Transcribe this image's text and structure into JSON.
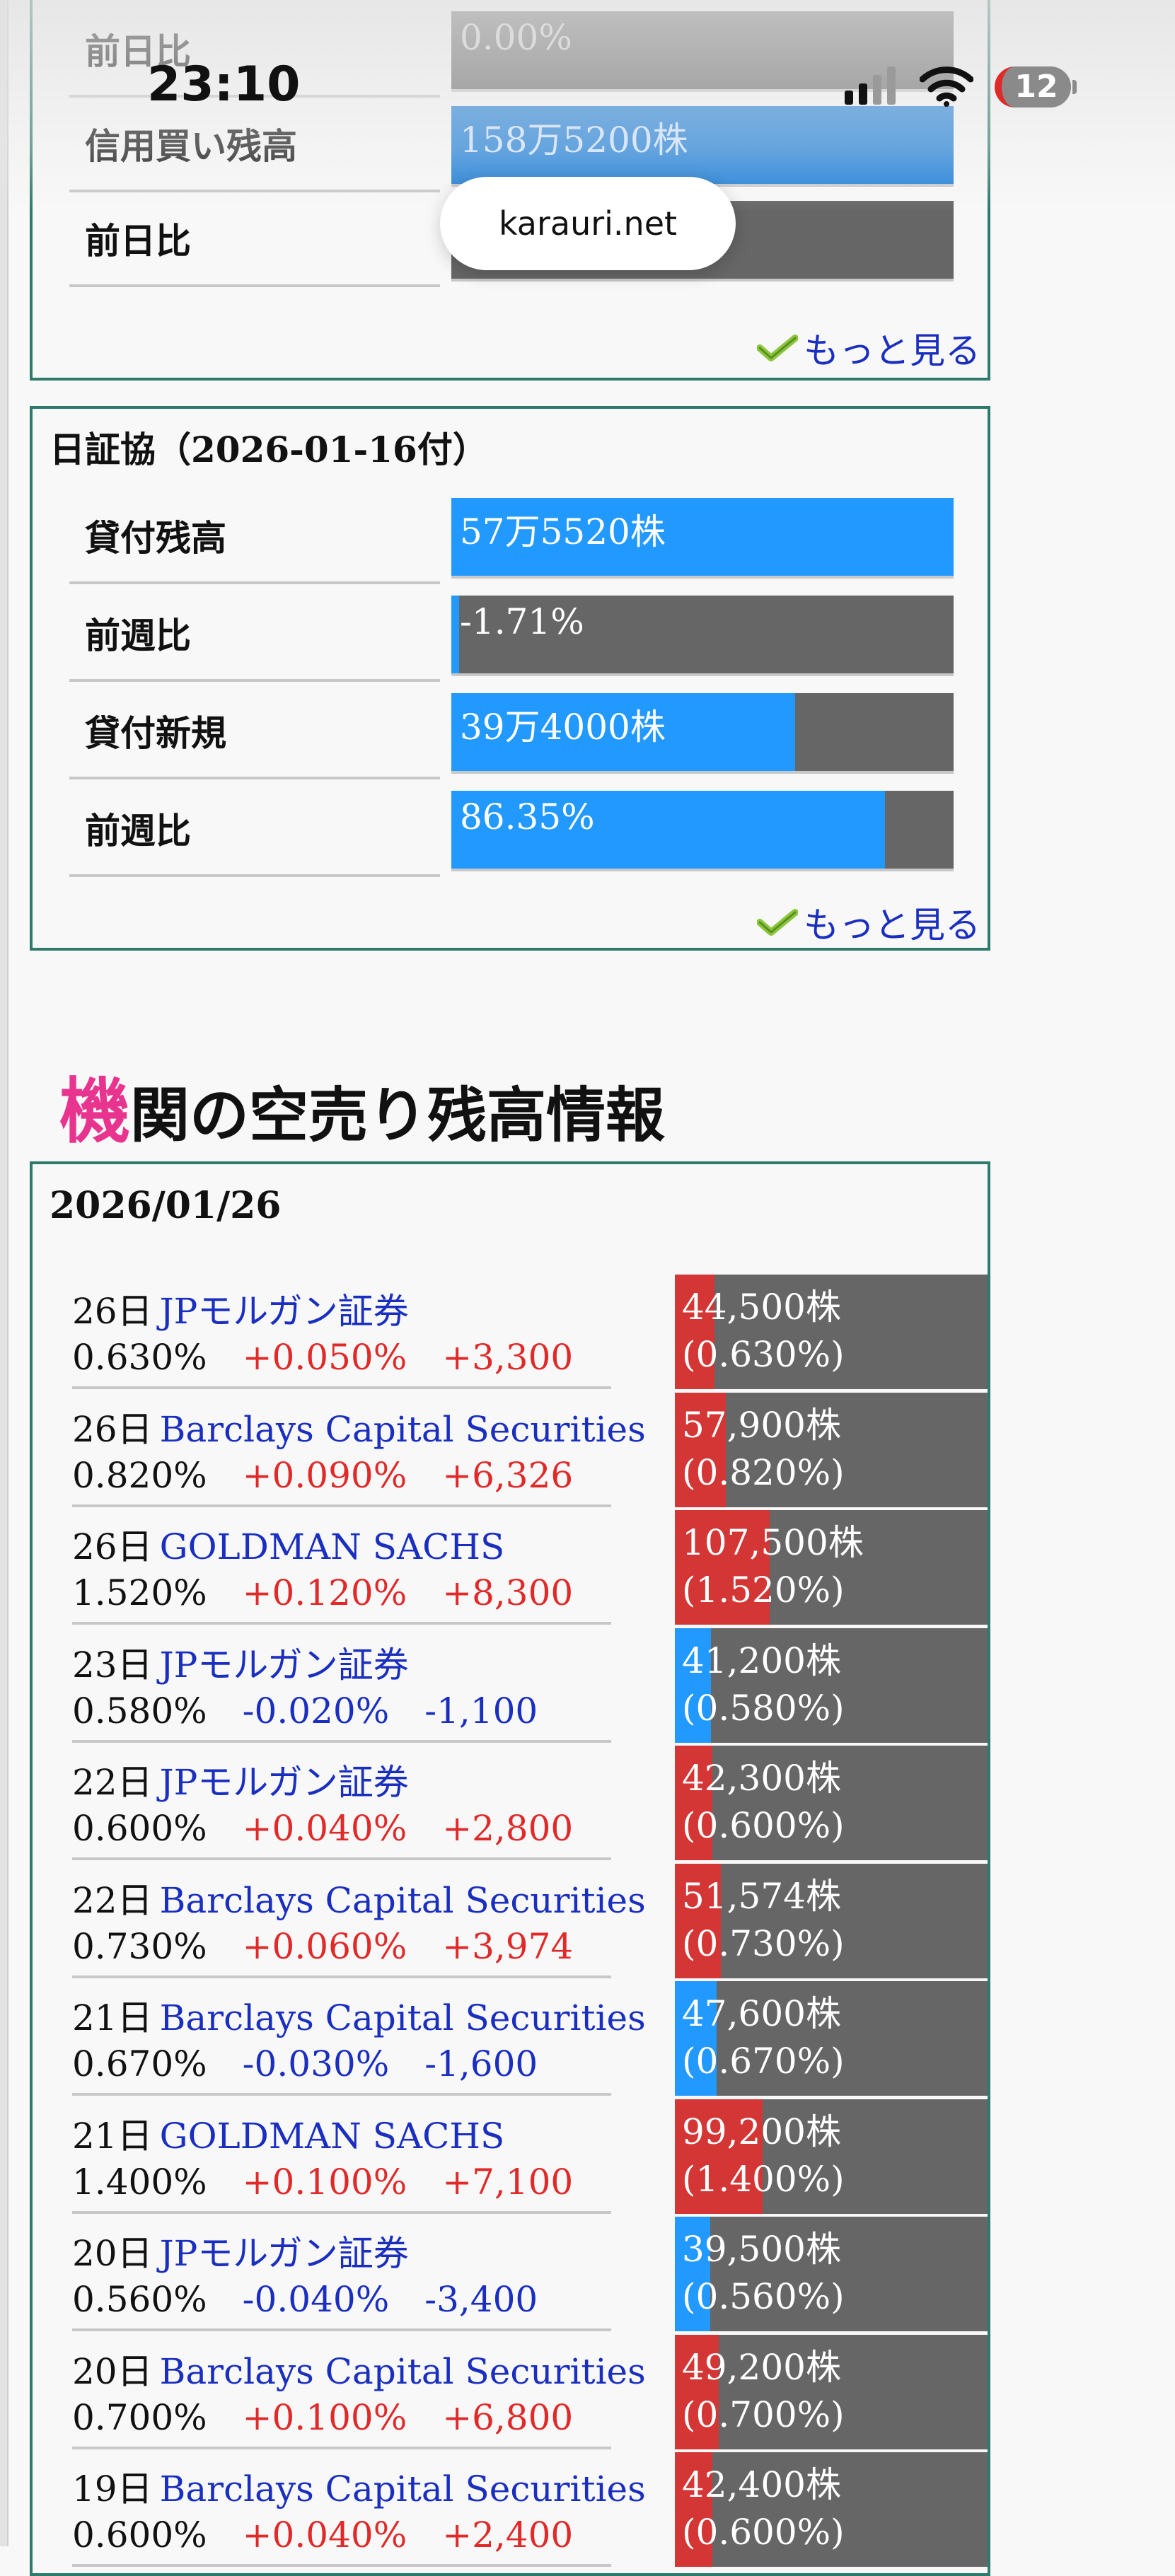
{
  "status_bar": {
    "time": "23:10",
    "battery": "12"
  },
  "url_bar": {
    "domain": "karauri.net"
  },
  "margin_box": {
    "rows": [
      {
        "label": "前日比",
        "value": "0.00%",
        "fill_pct": 0
      },
      {
        "label": "信用買い残高",
        "value": "158万5200株",
        "fill_pct": 100,
        "fill_color": "#1f7fd8"
      },
      {
        "label": "前日比",
        "value": "",
        "fill_pct": 0
      }
    ],
    "more_link": "もっと見る"
  },
  "jsf_box": {
    "title": "日証協（2026-01-16付）",
    "rows": [
      {
        "label": "貸付残高",
        "value": "57万5520株",
        "fill_pct": 100
      },
      {
        "label": "前週比",
        "value": "-1.71%",
        "fill_pct": 1.5
      },
      {
        "label": "貸付新規",
        "value": "39万4000株",
        "fill_pct": 68.5
      },
      {
        "label": "前週比",
        "value": "86.35%",
        "fill_pct": 86.3
      }
    ],
    "more_link": "もっと見る"
  },
  "institutions": {
    "heading_first_char": "機",
    "heading_rest": "関の空売り残高情報",
    "date": "2026/01/26",
    "rows": [
      {
        "day": "26日",
        "firm": "JPモルガン証券",
        "ratio": "0.630%",
        "change_pct": "+0.050%",
        "change_qty": "+3,300",
        "qty": "44,500株",
        "ratio_paren": "(0.630%)",
        "direction": "up",
        "fill_pct": 12.6
      },
      {
        "day": "26日",
        "firm": "Barclays Capital Securities",
        "ratio": "0.820%",
        "change_pct": "+0.090%",
        "change_qty": "+6,326",
        "qty": "57,900株",
        "ratio_paren": "(0.820%)",
        "direction": "up",
        "fill_pct": 16.4
      },
      {
        "day": "26日",
        "firm": "GOLDMAN SACHS",
        "ratio": "1.520%",
        "change_pct": "+0.120%",
        "change_qty": "+8,300",
        "qty": "107,500株",
        "ratio_paren": "(1.520%)",
        "direction": "up",
        "fill_pct": 30.4
      },
      {
        "day": "23日",
        "firm": "JPモルガン証券",
        "ratio": "0.580%",
        "change_pct": "-0.020%",
        "change_qty": "-1,100",
        "qty": "41,200株",
        "ratio_paren": "(0.580%)",
        "direction": "down",
        "fill_pct": 11.6
      },
      {
        "day": "22日",
        "firm": "JPモルガン証券",
        "ratio": "0.600%",
        "change_pct": "+0.040%",
        "change_qty": "+2,800",
        "qty": "42,300株",
        "ratio_paren": "(0.600%)",
        "direction": "up",
        "fill_pct": 12.0
      },
      {
        "day": "22日",
        "firm": "Barclays Capital Securities",
        "ratio": "0.730%",
        "change_pct": "+0.060%",
        "change_qty": "+3,974",
        "qty": "51,574株",
        "ratio_paren": "(0.730%)",
        "direction": "up",
        "fill_pct": 14.6
      },
      {
        "day": "21日",
        "firm": "Barclays Capital Securities",
        "ratio": "0.670%",
        "change_pct": "-0.030%",
        "change_qty": "-1,600",
        "qty": "47,600株",
        "ratio_paren": "(0.670%)",
        "direction": "down",
        "fill_pct": 13.4
      },
      {
        "day": "21日",
        "firm": "GOLDMAN SACHS",
        "ratio": "1.400%",
        "change_pct": "+0.100%",
        "change_qty": "+7,100",
        "qty": "99,200株",
        "ratio_paren": "(1.400%)",
        "direction": "up",
        "fill_pct": 28.0
      },
      {
        "day": "20日",
        "firm": "JPモルガン証券",
        "ratio": "0.560%",
        "change_pct": "-0.040%",
        "change_qty": "-3,400",
        "qty": "39,500株",
        "ratio_paren": "(0.560%)",
        "direction": "down",
        "fill_pct": 11.2
      },
      {
        "day": "20日",
        "firm": "Barclays Capital Securities",
        "ratio": "0.700%",
        "change_pct": "+0.100%",
        "change_qty": "+6,800",
        "qty": "49,200株",
        "ratio_paren": "(0.700%)",
        "direction": "up",
        "fill_pct": 14.0
      },
      {
        "day": "19日",
        "firm": "Barclays Capital Securities",
        "ratio": "0.600%",
        "change_pct": "+0.040%",
        "change_qty": "+2,400",
        "qty": "42,400株",
        "ratio_paren": "(0.600%)",
        "direction": "up",
        "fill_pct": 12.0
      }
    ]
  },
  "colors": {
    "box_border": "#2e7a6b",
    "bar_blue": "#2299ff",
    "bar_red": "#d43535",
    "bar_gray": "#666666",
    "link_blue": "#1a2fc0",
    "positive_red": "#e02a2a",
    "heading_pink": "#e8348f"
  }
}
